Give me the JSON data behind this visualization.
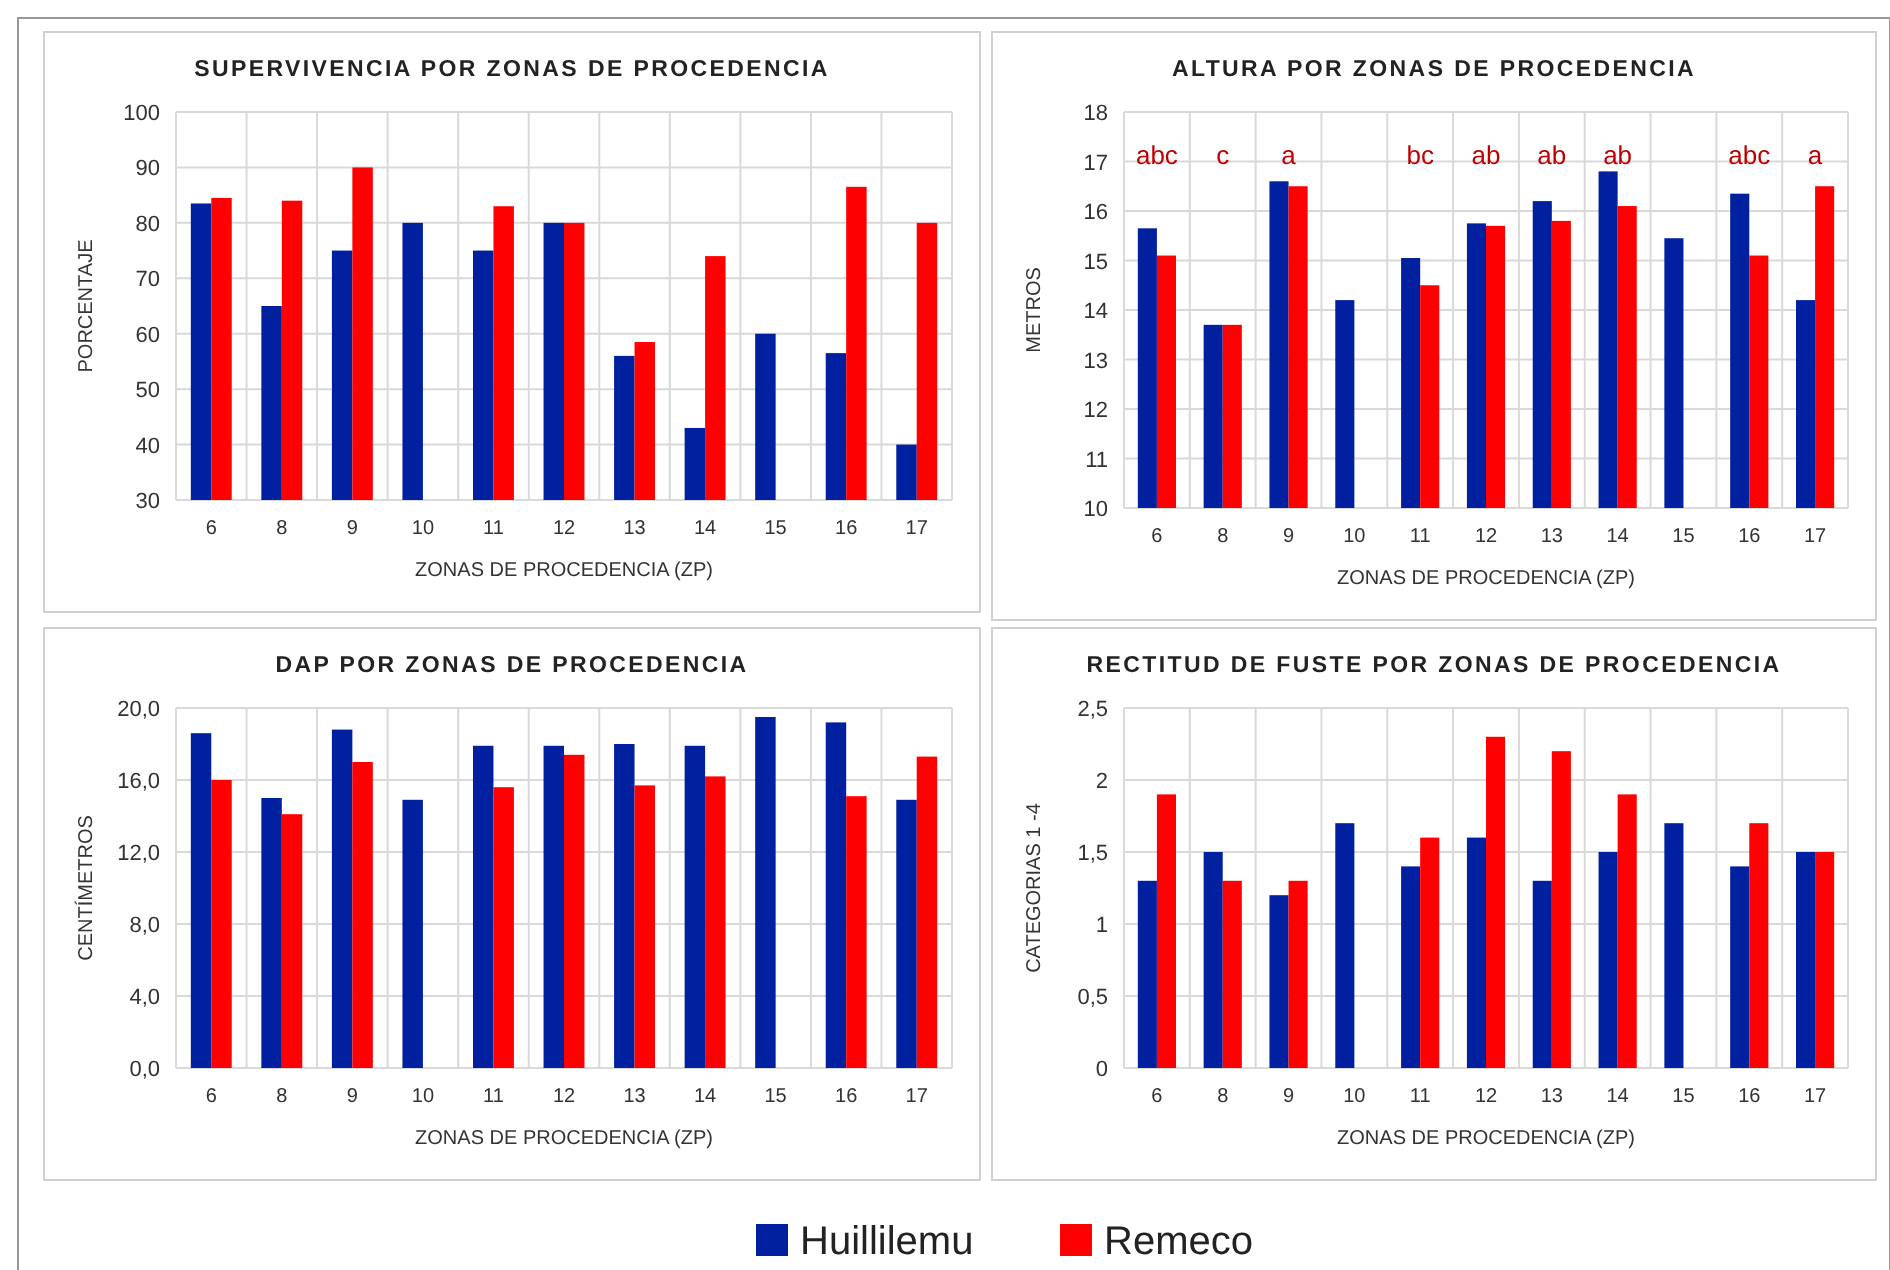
{
  "chart_data": [
    {
      "type": "bar",
      "title": "SUPERVIVENCIA POR ZONAS  DE PROCEDENCIA",
      "xlabel": "ZONAS DE PROCEDENCIA (ZP)",
      "ylabel": "PORCENTAJE",
      "categories": [
        "6",
        "8",
        "9",
        "10",
        "11",
        "12",
        "13",
        "14",
        "15",
        "16",
        "17"
      ],
      "ylim": [
        30,
        100
      ],
      "yticks": [
        30,
        40,
        50,
        60,
        70,
        80,
        90,
        100
      ],
      "grid": true,
      "legend": "bottom",
      "series": [
        {
          "name": "Huillilemu",
          "color": "#0020a0",
          "values": [
            83.5,
            65,
            75,
            80,
            75,
            80,
            56,
            43,
            60,
            56.5,
            40
          ]
        },
        {
          "name": "Remeco",
          "color": "#ff0000",
          "values": [
            84.5,
            84,
            90,
            null,
            83,
            80,
            58.5,
            74,
            null,
            86.5,
            80
          ]
        }
      ]
    },
    {
      "type": "bar",
      "title": "ALTURA POR ZONAS  DE PROCEDENCIA",
      "xlabel": "ZONAS DE PROCEDENCIA (ZP)",
      "ylabel": "METROS",
      "categories": [
        "6",
        "8",
        "9",
        "10",
        "11",
        "12",
        "13",
        "14",
        "15",
        "16",
        "17"
      ],
      "ylim": [
        10,
        18
      ],
      "yticks": [
        10,
        11,
        12,
        13,
        14,
        15,
        16,
        17,
        18
      ],
      "grid": true,
      "legend": "bottom",
      "annotations": [
        "abc",
        "c",
        "a",
        "bc",
        "ab",
        "ab",
        "ab",
        "abc",
        "a"
      ],
      "series": [
        {
          "name": "Huillilemu",
          "color": "#0020a0",
          "values": [
            15.65,
            13.7,
            16.6,
            14.2,
            15.05,
            15.75,
            16.2,
            16.8,
            15.45,
            16.35,
            14.2
          ]
        },
        {
          "name": "Remeco",
          "color": "#ff0000",
          "values": [
            15.1,
            13.7,
            16.5,
            null,
            14.5,
            15.7,
            15.8,
            16.1,
            null,
            15.1,
            16.5
          ]
        }
      ]
    },
    {
      "type": "bar",
      "title": "DAP POR ZONAS  DE PROCEDENCIA",
      "xlabel": "ZONAS DE PROCEDENCIA (ZP)",
      "ylabel": "CENTÍMETROS",
      "categories": [
        "6",
        "8",
        "9",
        "10",
        "11",
        "12",
        "13",
        "14",
        "15",
        "16",
        "17"
      ],
      "ylim": [
        0,
        20
      ],
      "yticks": [
        {
          "value": 0,
          "label": "0,0"
        },
        {
          "value": 4,
          "label": "4,0"
        },
        {
          "value": 8,
          "label": "8,0"
        },
        {
          "value": 12,
          "label": "12,0"
        },
        {
          "value": 16,
          "label": "16,0"
        },
        {
          "value": 20,
          "label": "20,0"
        }
      ],
      "grid": true,
      "legend": "bottom",
      "series": [
        {
          "name": "Huillilemu",
          "color": "#0020a0",
          "values": [
            18.6,
            15,
            18.8,
            14.9,
            17.9,
            17.9,
            18,
            17.9,
            19.5,
            19.2,
            14.9
          ]
        },
        {
          "name": "Remeco",
          "color": "#ff0000",
          "values": [
            16,
            14.1,
            17,
            null,
            15.6,
            17.4,
            15.7,
            16.2,
            null,
            15.1,
            17.3
          ]
        }
      ]
    },
    {
      "type": "bar",
      "title": "RECTITUD DE FUSTE POR ZONAS  DE PROCEDENCIA",
      "xlabel": "ZONAS DE PROCEDENCIA (ZP)",
      "ylabel": "CATEGORIAS 1 -4",
      "categories": [
        "6",
        "8",
        "9",
        "10",
        "11",
        "12",
        "13",
        "14",
        "15",
        "16",
        "17"
      ],
      "ylim": [
        0,
        2.5
      ],
      "yticks": [
        0,
        {
          "value": 0.5,
          "label": "0,5"
        },
        1,
        {
          "value": 1.5,
          "label": "1,5"
        },
        2,
        {
          "value": 2.5,
          "label": "2,5"
        }
      ],
      "grid": true,
      "legend": "bottom",
      "series": [
        {
          "name": "Huillilemu",
          "color": "#0020a0",
          "values": [
            1.3,
            1.5,
            1.2,
            1.7,
            1.4,
            1.6,
            1.3,
            1.5,
            1.7,
            1.4,
            1.5
          ]
        },
        {
          "name": "Remeco",
          "color": "#ff0000",
          "values": [
            1.9,
            1.3,
            1.3,
            null,
            1.6,
            2.3,
            2.2,
            1.9,
            null,
            1.7,
            1.5
          ]
        }
      ]
    }
  ]
}
